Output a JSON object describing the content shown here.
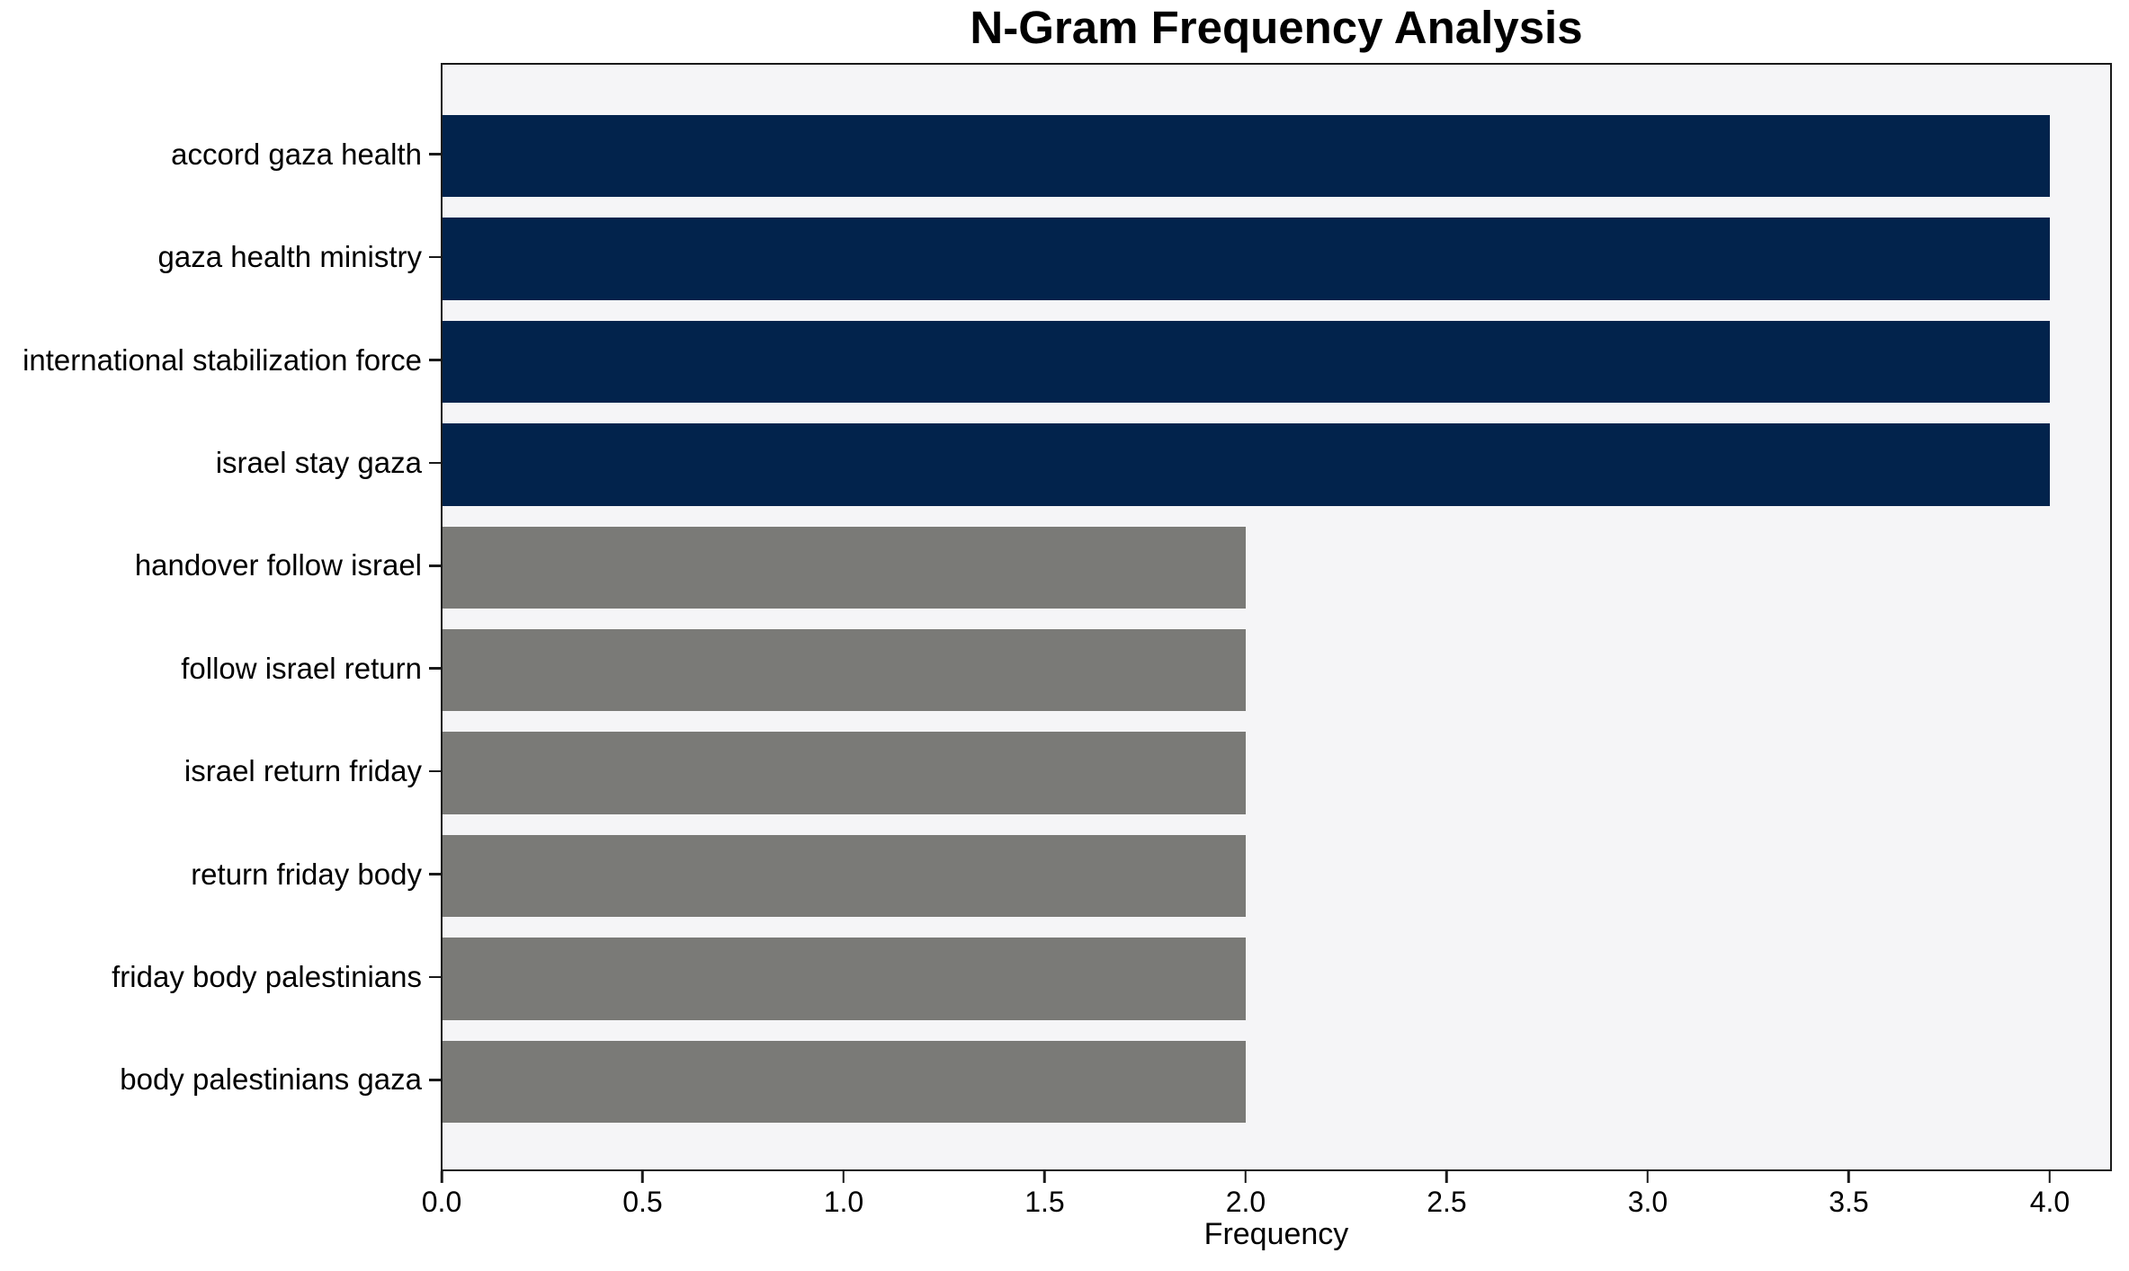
{
  "chart_data": {
    "type": "bar",
    "orientation": "horizontal",
    "title": "N-Gram Frequency Analysis",
    "xlabel": "Frequency",
    "ylabel": "",
    "categories": [
      "accord gaza health",
      "gaza health ministry",
      "international stabilization force",
      "israel stay gaza",
      "handover follow israel",
      "follow israel return",
      "israel return friday",
      "return friday body",
      "friday body palestinians",
      "body palestinians gaza"
    ],
    "values": [
      4,
      4,
      4,
      4,
      2,
      2,
      2,
      2,
      2,
      2
    ],
    "bar_colors": [
      "#02234C",
      "#02234C",
      "#02234C",
      "#02234C",
      "#7A7A77",
      "#7A7A77",
      "#7A7A77",
      "#7A7A77",
      "#7A7A77",
      "#7A7A77"
    ],
    "xlim": [
      0,
      4.15
    ],
    "xticks": [
      0,
      0.5,
      1,
      1.5,
      2,
      2.5,
      3,
      3.5,
      4
    ],
    "xtick_labels": [
      "0.0",
      "0.5",
      "1.0",
      "1.5",
      "2.0",
      "2.5",
      "3.0",
      "3.5",
      "4.0"
    ],
    "grid": false,
    "legend_position": "none",
    "colors": {
      "bar_high": "#02234C",
      "bar_low": "#7A7A77",
      "plot_background": "#F5F5F7",
      "frame": "#1A1A1A",
      "text": "#000000"
    }
  }
}
